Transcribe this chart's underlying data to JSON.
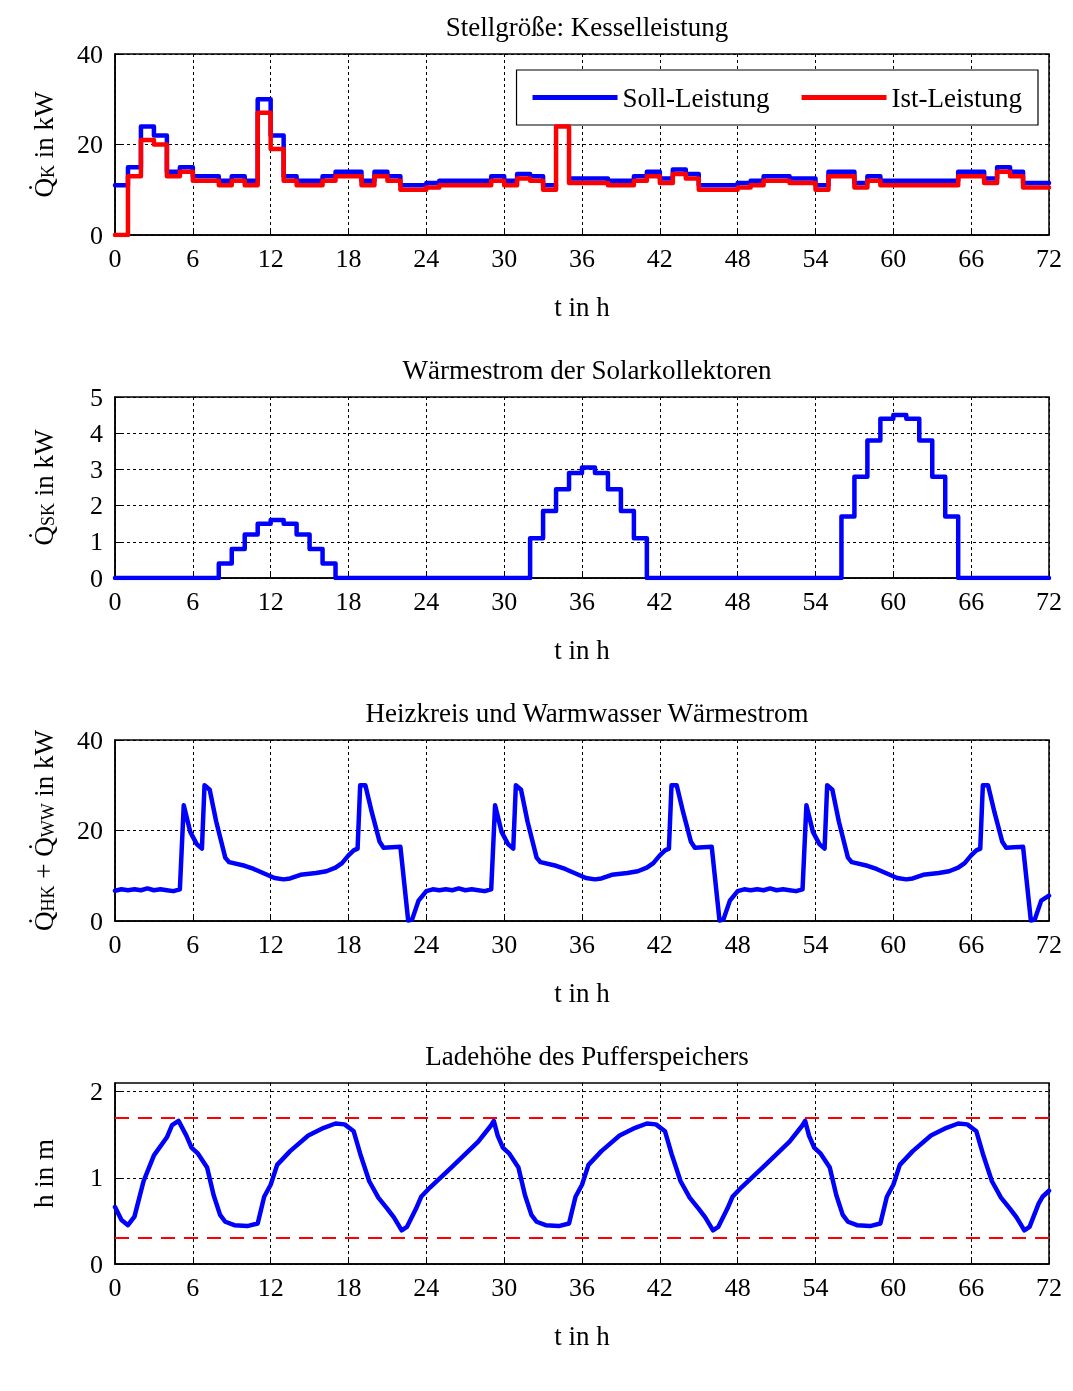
{
  "chart_data": [
    {
      "type": "step",
      "title": "Stellgröße: Kesselleistung",
      "xlabel": "t in h",
      "ylabel": "Q̇$_{K}$ in kW",
      "x": [
        0,
        1,
        2,
        3,
        4,
        5,
        6,
        7,
        8,
        9,
        10,
        11,
        12,
        13,
        14,
        15,
        16,
        17,
        18,
        19,
        20,
        21,
        22,
        23,
        24,
        25,
        26,
        27,
        28,
        29,
        30,
        31,
        32,
        33,
        34,
        35,
        36,
        37,
        38,
        39,
        40,
        41,
        42,
        43,
        44,
        45,
        46,
        47,
        48,
        49,
        50,
        51,
        52,
        53,
        54,
        55,
        56,
        57,
        58,
        59,
        60,
        61,
        62,
        63,
        64,
        65,
        66,
        67,
        68,
        69,
        70,
        71,
        72
      ],
      "xlim": [
        0,
        72
      ],
      "xticks": [
        0,
        6,
        12,
        18,
        24,
        30,
        36,
        42,
        48,
        54,
        60,
        66,
        72
      ],
      "ylim": [
        0,
        40
      ],
      "yticks": [
        0,
        20,
        40
      ],
      "grid": true,
      "legend": "top right",
      "marker": "none",
      "line_style": "solid",
      "series": [
        {
          "name": "Soll-Leistung",
          "color": "#0000ff",
          "values": [
            11,
            15,
            24,
            22,
            14,
            15,
            13,
            13,
            12,
            13,
            12,
            30,
            22,
            13,
            12,
            12,
            13,
            14,
            14,
            12,
            14,
            13,
            11,
            11,
            11.5,
            12,
            12,
            12,
            12,
            13,
            12,
            13.5,
            13,
            11,
            null,
            12.5,
            12.5,
            12.5,
            12,
            12,
            13,
            14,
            12.5,
            14.5,
            13.5,
            11,
            11,
            11,
            11.5,
            12,
            13,
            13,
            12.5,
            12.5,
            11,
            14,
            14,
            11.5,
            13,
            12,
            12,
            12,
            12,
            12,
            12,
            14,
            14,
            12.5,
            15,
            14,
            11.5,
            11.5,
            11.5
          ]
        },
        {
          "name": "Ist-Leistung",
          "color": "#ff0000",
          "values": [
            0,
            13,
            21,
            20,
            13,
            14,
            12,
            12,
            11,
            12,
            11,
            27,
            19,
            12,
            11,
            11,
            12,
            13,
            13,
            11,
            13,
            12,
            10,
            10,
            10.5,
            11,
            11,
            11,
            11,
            12,
            11,
            12.5,
            12,
            10,
            24,
            11.5,
            11.5,
            11.5,
            11,
            11,
            12,
            13,
            11.5,
            13.5,
            12.5,
            10,
            10,
            10,
            10.5,
            11,
            12,
            12,
            11.5,
            11.5,
            10,
            13,
            13,
            10.5,
            12,
            11,
            11,
            11,
            11,
            11,
            11,
            13,
            13,
            11.5,
            14,
            13,
            10.5,
            10.5,
            10.5
          ]
        }
      ]
    },
    {
      "type": "step",
      "title": "Wärmestrom der Solarkollektoren",
      "xlabel": "t in h",
      "ylabel": "Q̇$_{SK}$ in kW",
      "x": [
        0,
        1,
        2,
        3,
        4,
        5,
        6,
        7,
        8,
        9,
        10,
        11,
        12,
        13,
        14,
        15,
        16,
        17,
        18,
        19,
        20,
        21,
        22,
        23,
        24,
        25,
        26,
        27,
        28,
        29,
        30,
        31,
        32,
        33,
        34,
        35,
        36,
        37,
        38,
        39,
        40,
        41,
        42,
        43,
        44,
        45,
        46,
        47,
        48,
        49,
        50,
        51,
        52,
        53,
        54,
        55,
        56,
        57,
        58,
        59,
        60,
        61,
        62,
        63,
        64,
        65,
        66,
        67,
        68,
        69,
        70,
        71,
        72
      ],
      "xlim": [
        0,
        72
      ],
      "xticks": [
        0,
        6,
        12,
        18,
        24,
        30,
        36,
        42,
        48,
        54,
        60,
        66,
        72
      ],
      "ylim": [
        0,
        5
      ],
      "yticks": [
        0,
        1,
        2,
        3,
        4,
        5
      ],
      "grid": true,
      "marker": "none",
      "line_style": "solid",
      "series": [
        {
          "color": "#0000ff",
          "values": [
            0,
            0,
            0,
            0,
            0,
            0,
            0,
            0,
            0.4,
            0.8,
            1.2,
            1.5,
            1.6,
            1.5,
            1.2,
            0.8,
            0.4,
            0,
            0,
            0,
            0,
            0,
            0,
            0,
            0,
            0,
            0,
            0,
            0,
            0,
            0,
            0,
            1.1,
            1.85,
            2.45,
            2.9,
            3.05,
            2.9,
            2.45,
            1.85,
            1.1,
            0,
            0,
            0,
            0,
            0,
            0,
            0,
            0,
            0,
            0,
            0,
            0,
            0,
            0,
            0,
            1.7,
            2.8,
            3.8,
            4.4,
            4.5,
            4.4,
            3.8,
            2.8,
            1.7,
            0,
            0,
            0,
            0,
            0,
            0,
            0,
            0
          ]
        }
      ]
    },
    {
      "type": "line",
      "title": "Heizkreis und Warmwasser Wärmestrom",
      "xlabel": "t in h",
      "ylabel": "Q̇$_{HK}$ + Q̇$_{WW}$ in kW",
      "x": [
        0,
        0.5,
        1,
        1.5,
        2,
        2.5,
        3,
        3.5,
        4,
        4.5,
        5,
        5.3,
        5.8,
        6.3,
        6.7,
        6.9,
        7.3,
        7.8,
        8.5,
        8.8,
        10,
        10.7,
        11.5,
        12.3,
        13,
        13.5,
        14.3,
        15.5,
        16.3,
        17,
        17.5,
        18,
        18.4,
        18.7,
        18.9,
        19.3,
        19.8,
        20.4,
        20.7,
        22,
        22.6,
        22.9,
        23.4,
        24,
        24.5,
        25,
        25.5,
        26,
        26.5,
        27,
        27.5,
        28,
        28.5,
        29,
        29.3,
        29.8,
        30.3,
        30.7,
        30.9,
        31.3,
        31.8,
        32.5,
        32.8,
        34,
        34.7,
        35.5,
        36.3,
        37,
        37.5,
        38.3,
        39.5,
        40.3,
        41,
        41.5,
        42,
        42.4,
        42.7,
        42.9,
        43.3,
        43.8,
        44.4,
        44.7,
        46,
        46.6,
        46.9,
        47.4,
        48,
        48.5,
        49,
        49.5,
        50,
        50.5,
        51,
        51.5,
        52,
        52.5,
        53,
        53.3,
        53.8,
        54.3,
        54.7,
        54.9,
        55.3,
        55.8,
        56.5,
        56.8,
        58,
        58.7,
        59.5,
        60.3,
        61,
        61.5,
        62.3,
        63.5,
        64.3,
        65,
        65.5,
        66,
        66.4,
        66.7,
        66.9,
        67.3,
        67.8,
        68.4,
        68.7,
        70,
        70.6,
        70.9,
        71.4,
        72
      ],
      "xlim": [
        0,
        72
      ],
      "xticks": [
        0,
        6,
        12,
        18,
        24,
        30,
        36,
        42,
        48,
        54,
        60,
        66,
        72
      ],
      "ylim": [
        0,
        40
      ],
      "yticks": [
        0,
        20,
        40
      ],
      "grid": true,
      "marker": "none",
      "line_style": "solid",
      "series": [
        {
          "color": "#0000ff",
          "values": [
            6.7,
            7,
            6.8,
            7,
            6.8,
            7.2,
            6.8,
            7,
            6.8,
            6.6,
            7,
            25.6,
            19.7,
            17,
            16,
            30,
            29,
            22,
            14,
            13,
            12.2,
            11.5,
            10.5,
            9.5,
            9.2,
            9.4,
            10.2,
            10.6,
            11,
            11.8,
            12.8,
            14.5,
            15.6,
            16,
            30,
            30,
            24,
            17.5,
            16.2,
            16.4,
            0.1,
            0.3,
            4.5,
            6.6,
            7,
            6.8,
            7,
            6.8,
            7.2,
            6.8,
            7,
            6.8,
            6.6,
            7,
            25.6,
            19.7,
            17,
            16,
            30,
            29,
            22,
            14,
            13,
            12.2,
            11.5,
            10.5,
            9.5,
            9.2,
            9.4,
            10.2,
            10.6,
            11,
            11.8,
            12.8,
            14.5,
            15.6,
            16,
            30,
            30,
            24,
            17.5,
            16.2,
            16.4,
            0.1,
            0.3,
            4.5,
            6.6,
            7,
            6.8,
            7,
            6.8,
            7.2,
            6.8,
            7,
            6.8,
            6.6,
            7,
            25.6,
            19.7,
            17,
            16,
            30,
            29,
            22,
            14,
            13,
            12.2,
            11.5,
            10.5,
            9.5,
            9.2,
            9.4,
            10.2,
            10.6,
            11,
            11.8,
            12.8,
            14.5,
            15.6,
            16,
            30,
            30,
            24,
            17.5,
            16.2,
            16.4,
            0.1,
            0.3,
            4.5,
            5.6
          ]
        }
      ]
    },
    {
      "type": "line",
      "title": "Ladehöhe des Pufferspeichers",
      "xlabel": "t in h",
      "ylabel": "h in m",
      "x": [
        0,
        0.5,
        1,
        1.5,
        2.2,
        3,
        4,
        4.4,
        4.9,
        5.5,
        5.9,
        6.4,
        7.1,
        7.6,
        8.1,
        8.5,
        9.2,
        10.2,
        11,
        11.5,
        12,
        12.5,
        13.5,
        14.9,
        16.1,
        17,
        17.7,
        18.4,
        18.9,
        19.6,
        20.3,
        21,
        21.5,
        22.1,
        22.5,
        23.2,
        23.6,
        24.3,
        26,
        28,
        29,
        29.2,
        29.5,
        29.9,
        30.4,
        31.1,
        31.6,
        32.1,
        32.5,
        33.2,
        34.2,
        35,
        35.5,
        36,
        36.5,
        37.5,
        38.9,
        40.1,
        41,
        41.7,
        42.4,
        42.9,
        43.6,
        44.3,
        45,
        45.5,
        46.1,
        46.5,
        47.2,
        47.6,
        48.3,
        50,
        52,
        53,
        53.2,
        53.5,
        53.9,
        54.4,
        55.1,
        55.6,
        56.1,
        56.5,
        57.2,
        58.2,
        59,
        59.5,
        60,
        60.5,
        61.5,
        62.9,
        64.1,
        65,
        65.7,
        66.4,
        66.9,
        67.6,
        68.3,
        69,
        69.5,
        70.1,
        70.5,
        71.2,
        71.5,
        72
      ],
      "xlim": [
        0,
        72
      ],
      "xticks": [
        0,
        6,
        12,
        18,
        24,
        30,
        36,
        42,
        48,
        54,
        60,
        66,
        72
      ],
      "ylim": [
        0,
        2.1
      ],
      "yticks": [
        0,
        1,
        2
      ],
      "grid": true,
      "marker": "none",
      "line_style": "solid",
      "ref_lines": [
        {
          "axis": "y",
          "value": 1.7,
          "color": "#ff0000",
          "line_style": "dashed"
        },
        {
          "axis": "y",
          "value": 0.3,
          "color": "#ff0000",
          "line_style": "dashed"
        }
      ],
      "series": [
        {
          "color": "#0000ff",
          "values": [
            0.66,
            0.51,
            0.45,
            0.55,
            0.96,
            1.26,
            1.47,
            1.61,
            1.66,
            1.49,
            1.35,
            1.28,
            1.12,
            0.8,
            0.57,
            0.49,
            0.45,
            0.44,
            0.47,
            0.78,
            0.92,
            1.15,
            1.31,
            1.49,
            1.58,
            1.63,
            1.62,
            1.54,
            1.28,
            0.96,
            0.77,
            0.64,
            0.54,
            0.39,
            0.43,
            0.64,
            0.78,
            0.89,
            1.13,
            1.42,
            1.61,
            1.66,
            1.49,
            1.35,
            1.28,
            1.12,
            0.8,
            0.57,
            0.49,
            0.45,
            0.44,
            0.47,
            0.78,
            0.92,
            1.15,
            1.31,
            1.49,
            1.58,
            1.63,
            1.62,
            1.54,
            1.28,
            0.96,
            0.77,
            0.64,
            0.54,
            0.39,
            0.43,
            0.64,
            0.78,
            0.89,
            1.13,
            1.42,
            1.61,
            1.66,
            1.49,
            1.35,
            1.28,
            1.12,
            0.8,
            0.57,
            0.49,
            0.45,
            0.44,
            0.47,
            0.78,
            0.92,
            1.15,
            1.31,
            1.49,
            1.58,
            1.63,
            1.62,
            1.54,
            1.28,
            0.96,
            0.77,
            0.64,
            0.54,
            0.39,
            0.43,
            0.7,
            0.78,
            0.85
          ]
        }
      ]
    }
  ]
}
